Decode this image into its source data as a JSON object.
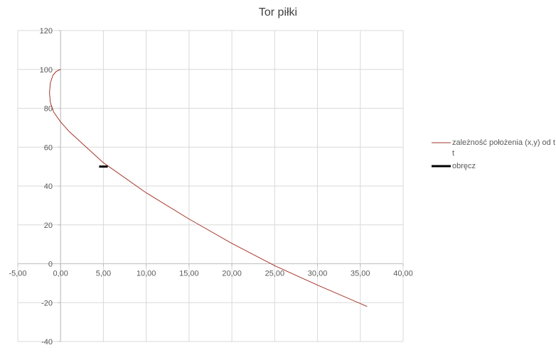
{
  "chart_data": {
    "type": "scatter",
    "title": "Tor piłki",
    "xlabel": "",
    "ylabel": "",
    "xlim": [
      -5,
      40
    ],
    "ylim": [
      -40,
      120
    ],
    "x_ticks": [
      "-5,00",
      "0,00",
      "5,00",
      "10,00",
      "15,00",
      "20,00",
      "25,00",
      "30,00",
      "35,00",
      "40,00"
    ],
    "x_tick_values": [
      -5,
      0,
      5,
      10,
      15,
      20,
      25,
      30,
      35,
      40
    ],
    "y_ticks": [
      "120",
      "100",
      "80",
      "60",
      "40",
      "20",
      "0",
      "-20",
      "-40"
    ],
    "y_tick_values": [
      120,
      100,
      80,
      60,
      40,
      20,
      0,
      -20,
      -40
    ],
    "grid": true,
    "legend_position": "right",
    "series": [
      {
        "name": "zależność położenia (x,y) od t",
        "color": "#a5362b",
        "line_only": true,
        "x": [
          0.0,
          -0.5,
          -0.9,
          -1.2,
          -1.3,
          -1.2,
          -0.8,
          0.0,
          1.0,
          2.5,
          5.0,
          10.0,
          15.0,
          20.0,
          25.0,
          30.0,
          35.8
        ],
        "y": [
          100,
          99,
          97,
          93,
          88,
          83,
          78,
          73,
          68,
          62,
          52,
          36.5,
          23,
          10.5,
          -1,
          -11,
          -22
        ]
      },
      {
        "name": "obręcz",
        "color": "#000000",
        "line_only": true,
        "x": [
          4.5,
          5.5
        ],
        "y": [
          50,
          50
        ]
      }
    ]
  }
}
